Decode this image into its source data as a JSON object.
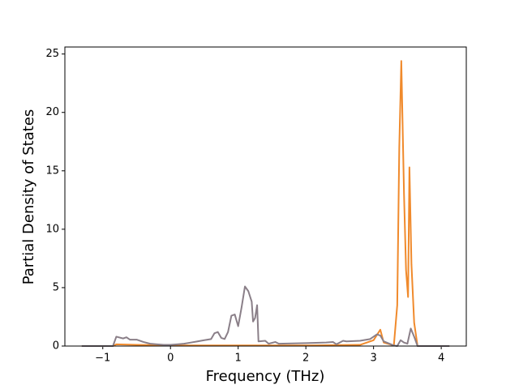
{
  "chart_data": {
    "type": "line",
    "x_label": "Frequency (THz)",
    "y_label": "Partial Density of States",
    "xlim": [
      -1.56,
      4.37
    ],
    "ylim": [
      0,
      25.6
    ],
    "xticks": [
      {
        "value": -1,
        "label": "−1"
      },
      0,
      1,
      2,
      3,
      4
    ],
    "yticks": [
      0,
      5,
      10,
      15,
      20,
      25
    ],
    "series": [
      {
        "color": "#f08a2c",
        "x": [
          -1.31,
          -0.85,
          -0.8,
          -0.5,
          0,
          1,
          2,
          2.8,
          3.0,
          3.1,
          3.15,
          3.3,
          3.35,
          3.38,
          3.41,
          3.45,
          3.48,
          3.51,
          3.53,
          3.56,
          3.6,
          3.65,
          4.12
        ],
        "values": [
          0,
          0,
          0.15,
          0.1,
          0.05,
          0.05,
          0.05,
          0.1,
          0.5,
          1.4,
          0.3,
          0.05,
          3.5,
          17,
          24.4,
          13,
          6.5,
          4.2,
          15.3,
          7,
          2,
          0,
          0
        ]
      },
      {
        "color": "#8a7f88",
        "x": [
          -1.31,
          -0.85,
          -0.8,
          -0.7,
          -0.65,
          -0.6,
          -0.5,
          -0.4,
          -0.3,
          -0.2,
          -0.1,
          0,
          0.1,
          0.2,
          0.3,
          0.4,
          0.5,
          0.6,
          0.65,
          0.7,
          0.75,
          0.8,
          0.85,
          0.9,
          0.95,
          1.0,
          1.05,
          1.1,
          1.15,
          1.2,
          1.22,
          1.25,
          1.28,
          1.3,
          1.4,
          1.45,
          1.55,
          1.6,
          2.0,
          2.3,
          2.4,
          2.45,
          2.55,
          2.6,
          2.8,
          2.95,
          3.05,
          3.1,
          3.15,
          3.3,
          3.35,
          3.4,
          3.45,
          3.5,
          3.55,
          3.6,
          3.65,
          4.12
        ],
        "values": [
          0,
          0,
          0.8,
          0.65,
          0.75,
          0.55,
          0.55,
          0.35,
          0.2,
          0.15,
          0.1,
          0.1,
          0.15,
          0.2,
          0.3,
          0.4,
          0.5,
          0.6,
          1.1,
          1.2,
          0.7,
          0.6,
          1.2,
          2.6,
          2.7,
          1.7,
          3.3,
          5.1,
          4.7,
          3.8,
          2.1,
          2.4,
          3.5,
          0.4,
          0.45,
          0.2,
          0.35,
          0.2,
          0.25,
          0.3,
          0.35,
          0.15,
          0.45,
          0.4,
          0.45,
          0.6,
          1.0,
          0.9,
          0.4,
          0.05,
          0,
          0.5,
          0.3,
          0.2,
          1.5,
          0.8,
          0,
          0
        ]
      }
    ]
  }
}
